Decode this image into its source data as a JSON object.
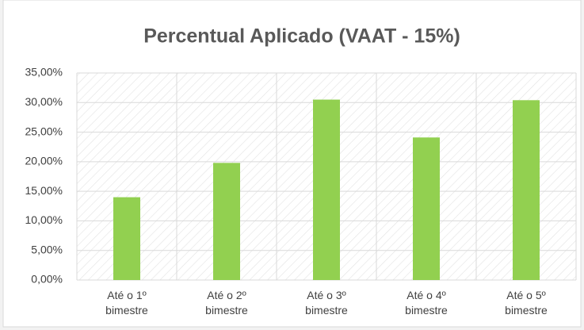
{
  "chart_data": {
    "type": "bar",
    "title": "Percentual Aplicado (VAAT - 15%)",
    "categories": [
      "Até o 1º bimestre",
      "Até o 2º bimestre",
      "Até o 3º bimestre",
      "Até o 4º bimestre",
      "Até o 5º bimestre"
    ],
    "values": [
      14.0,
      19.8,
      30.5,
      24.1,
      30.4
    ],
    "color": "#92d050",
    "ylim": [
      0,
      35
    ],
    "yticks": [
      {
        "value": 0,
        "label": "0,00%"
      },
      {
        "value": 5,
        "label": "5,00%"
      },
      {
        "value": 10,
        "label": "10,00%"
      },
      {
        "value": 15,
        "label": "15,00%"
      },
      {
        "value": 20,
        "label": "20,00%"
      },
      {
        "value": 25,
        "label": "25,00%"
      },
      {
        "value": 30,
        "label": "30,00%"
      },
      {
        "value": 35,
        "label": "35,00%"
      }
    ],
    "grid": true
  }
}
